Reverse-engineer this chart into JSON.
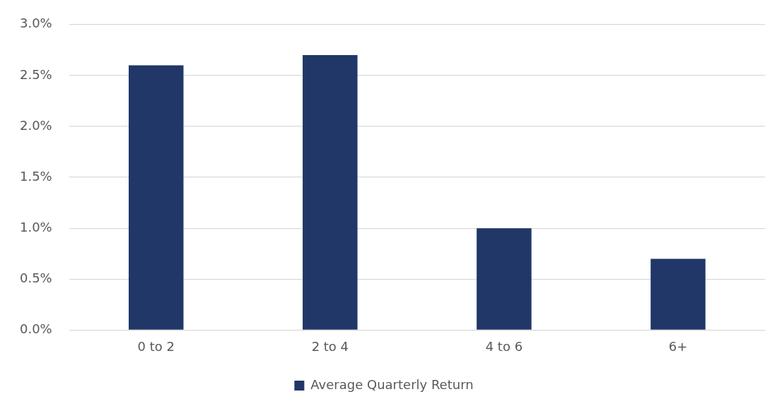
{
  "chart_data": {
    "type": "bar",
    "categories": [
      "0 to 2",
      "2 to 4",
      "4 to 6",
      "6+"
    ],
    "series": [
      {
        "name": "Average Quarterly Return",
        "color": "#203768",
        "values": [
          2.6,
          2.7,
          1.0,
          0.7
        ]
      }
    ],
    "ylim": [
      0,
      3
    ],
    "yticks": [
      {
        "value": 0,
        "label": "0.0%"
      },
      {
        "value": 0.5,
        "label": "0.5%"
      },
      {
        "value": 1,
        "label": "1.0%"
      },
      {
        "value": 1.5,
        "label": "1.5%"
      },
      {
        "value": 2,
        "label": "2.0%"
      },
      {
        "value": 2.5,
        "label": "2.5%"
      },
      {
        "value": 3,
        "label": "3.0%"
      }
    ],
    "grid": "y",
    "legend": "bottom"
  }
}
